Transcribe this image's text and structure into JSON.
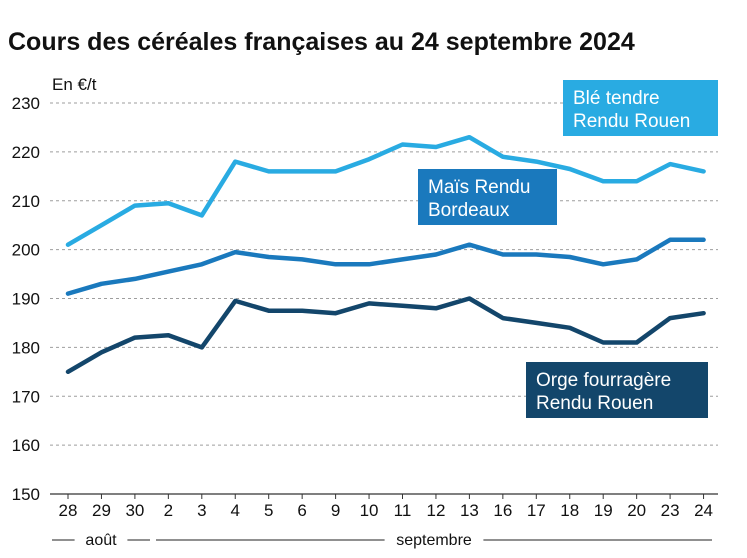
{
  "chart_data": {
    "type": "line",
    "title": "Cours des céréales françaises au 24 septembre 2024",
    "unit_label": "En €/t",
    "ylim": [
      150,
      230
    ],
    "yticks": [
      150,
      160,
      170,
      180,
      190,
      200,
      210,
      220,
      230
    ],
    "grid": true,
    "categories": [
      "28",
      "29",
      "30",
      "2",
      "3",
      "4",
      "5",
      "6",
      "9",
      "10",
      "11",
      "12",
      "13",
      "16",
      "17",
      "18",
      "19",
      "20",
      "23",
      "24"
    ],
    "months": [
      {
        "label": "août",
        "from_index": 0,
        "to_index": 2
      },
      {
        "label": "septembre",
        "from_index": 3,
        "to_index": 19
      }
    ],
    "series": [
      {
        "name_lines": [
          "Blé tendre",
          "Rendu Rouen"
        ],
        "color": "#29abe2",
        "values": [
          201,
          205,
          209,
          209.5,
          207,
          218,
          216,
          216,
          216,
          218.5,
          221.5,
          221,
          223,
          219,
          218,
          216.5,
          214,
          214,
          217.5,
          216
        ]
      },
      {
        "name_lines": [
          "Maïs Rendu",
          "Bordeaux"
        ],
        "color": "#1a79bd",
        "values": [
          191,
          193,
          194,
          195.5,
          197,
          199.5,
          198.5,
          198,
          197,
          197,
          198,
          199,
          201,
          199,
          199,
          198.5,
          197,
          198,
          202,
          202
        ]
      },
      {
        "name_lines": [
          "Orge fourragère",
          "Rendu Rouen"
        ],
        "color": "#13466b",
        "values": [
          175,
          179,
          182,
          182.5,
          180,
          189.5,
          187.5,
          187.5,
          187,
          189,
          188.5,
          188,
          190,
          186,
          185,
          184,
          181,
          181,
          186,
          187
        ]
      }
    ]
  }
}
